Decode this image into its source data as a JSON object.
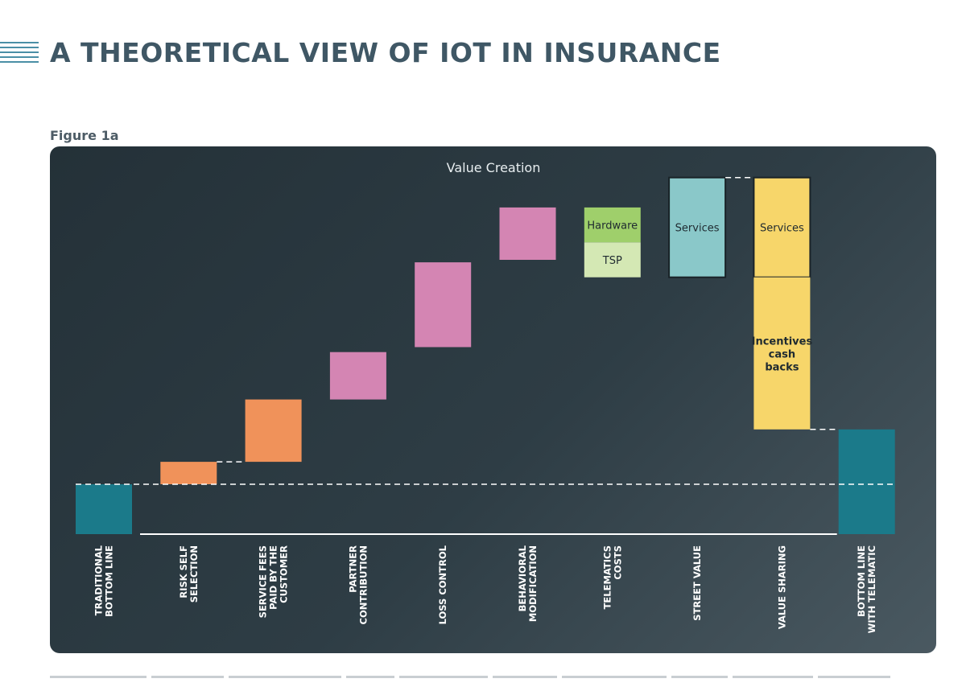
{
  "page": {
    "title": "A THEORETICAL VIEW OF IOT IN INSURANCE",
    "figure_label": "Figure 1a"
  },
  "colors": {
    "panel_dark": "#243138",
    "teal": "#1b7a8a",
    "orange": "#f0925a",
    "pink": "#d485b3",
    "green": "#9fcf6b",
    "light_green": "#d4e8b4",
    "light_teal": "#8ac8c9",
    "yellow": "#f7d66a",
    "title_color": "#3f5765"
  },
  "chart_data": {
    "type": "waterfall",
    "title": "Value Creation",
    "ylim": [
      0,
      100
    ],
    "baseline": 20,
    "categories": [
      [
        "TRADITIONAL",
        "BOTTOM LINE"
      ],
      [
        "RISK SELF",
        "SELECTION"
      ],
      [
        "SERVICE FEES",
        "PAID BY THE",
        "CUSTOMER"
      ],
      [
        "PARTNER",
        "CONTRIBUTION"
      ],
      [
        "LOSS CONTROL"
      ],
      [
        "BEHAVIORAL",
        "MODIFICATION"
      ],
      [
        "TELEMATICS",
        "COSTS"
      ],
      [
        "STREET VALUE"
      ],
      [
        "VALUE SHARING"
      ],
      [
        "BOTTOM LINE",
        "WITH TELEMATIC"
      ]
    ],
    "bars": [
      {
        "category_index": 0,
        "from": 0,
        "to": 20,
        "color": "teal",
        "label": []
      },
      {
        "category_index": 1,
        "from": 20,
        "to": 29,
        "color": "orange",
        "label": []
      },
      {
        "category_index": 2,
        "from": 29,
        "to": 54,
        "color": "orange",
        "label": []
      },
      {
        "category_index": 3,
        "from": 54,
        "to": 73,
        "color": "pink",
        "label": []
      },
      {
        "category_index": 4,
        "from": 75,
        "to": 109,
        "color": "pink",
        "label": []
      },
      {
        "category_index": 5,
        "from": 110,
        "to": 131,
        "color": "pink",
        "label": []
      },
      {
        "category_index": 6,
        "from": 117,
        "to": 131,
        "color": "green",
        "label": [
          "Hardware"
        ]
      },
      {
        "category_index": 6,
        "from": 103,
        "to": 117,
        "color": "light_green",
        "label": [
          "TSP"
        ]
      },
      {
        "category_index": 7,
        "from": 103,
        "to": 143,
        "color": "light_teal",
        "label": [
          "Services"
        ],
        "outlined": true
      },
      {
        "category_index": 8,
        "from": 103,
        "to": 143,
        "color": "yellow",
        "label": [
          "Services"
        ],
        "outlined": true
      },
      {
        "category_index": 8,
        "from": 42,
        "to": 103,
        "color": "yellow",
        "label": [
          "Incentives",
          "cash",
          "backs"
        ]
      },
      {
        "category_index": 9,
        "from": 0,
        "to": 42,
        "color": "teal",
        "label": []
      }
    ],
    "connectors": [
      {
        "from_index": 1,
        "to_index": 2,
        "value": 29
      },
      {
        "from_index": 7,
        "to_index": 8,
        "value": 143
      },
      {
        "from_index": 8,
        "to_index": 9,
        "value": 42
      }
    ],
    "reference_line": {
      "value": 20
    },
    "axis_line": {
      "value": 0
    }
  }
}
